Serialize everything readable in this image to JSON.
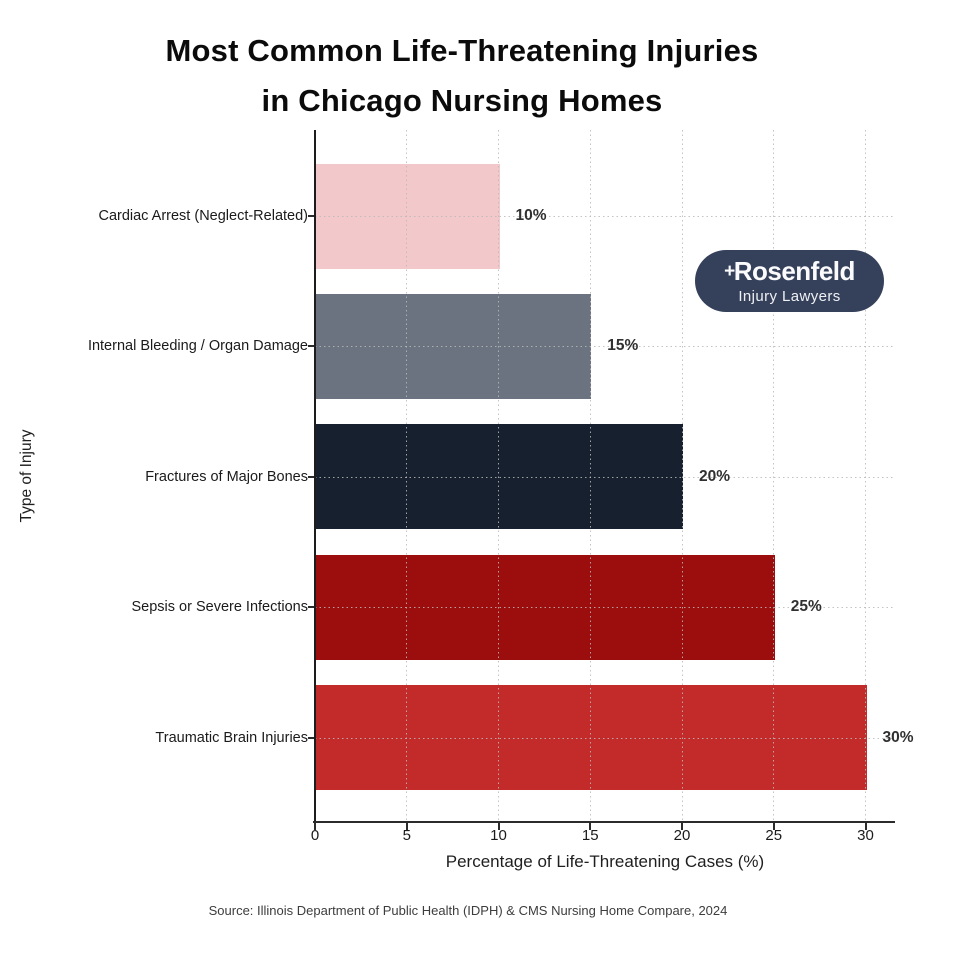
{
  "title": {
    "line1": "Most Common Life-Threatening Injuries",
    "line2": "in Chicago Nursing Homes"
  },
  "chart_data": {
    "type": "bar",
    "orientation": "horizontal",
    "title": "Most Common Life-Threatening Injuries in Chicago Nursing Homes",
    "categories": [
      "Cardiac Arrest (Neglect-Related)",
      "Internal Bleeding / Organ Damage",
      "Fractures of Major Bones",
      "Sepsis or Severe Infections",
      "Traumatic Brain Injuries"
    ],
    "values": [
      10,
      15,
      20,
      25,
      30
    ],
    "value_labels": [
      "10%",
      "15%",
      "20%",
      "25%",
      "30%"
    ],
    "bar_colors": [
      "#f3c8ca",
      "#6b7380",
      "#16202e",
      "#9c0d0d",
      "#c32b2b"
    ],
    "xlabel": "Percentage of Life-Threatening Cases (%)",
    "ylabel": "Type of Injury",
    "xticks": [
      0,
      5,
      10,
      15,
      20,
      25,
      30
    ],
    "xlim": [
      0,
      31.6
    ],
    "grid": true,
    "grid_style": "dotted",
    "legend": "none"
  },
  "logo": {
    "plus": "+",
    "name": "Rosenfeld",
    "tagline": "Injury Lawyers",
    "bg_color": "#35415b"
  },
  "source": "Source: Illinois Department of Public Health (IDPH) & CMS Nursing Home Compare, 2024",
  "colors": {
    "background": "#ffffff",
    "title_text": "#0b0b0b",
    "axis_line": "#2b2b2b",
    "tick_text": "#1b1b1b",
    "gridline": "#bcbcbc",
    "value_label_text": "#303030",
    "source_text": "#3d3d3d"
  }
}
